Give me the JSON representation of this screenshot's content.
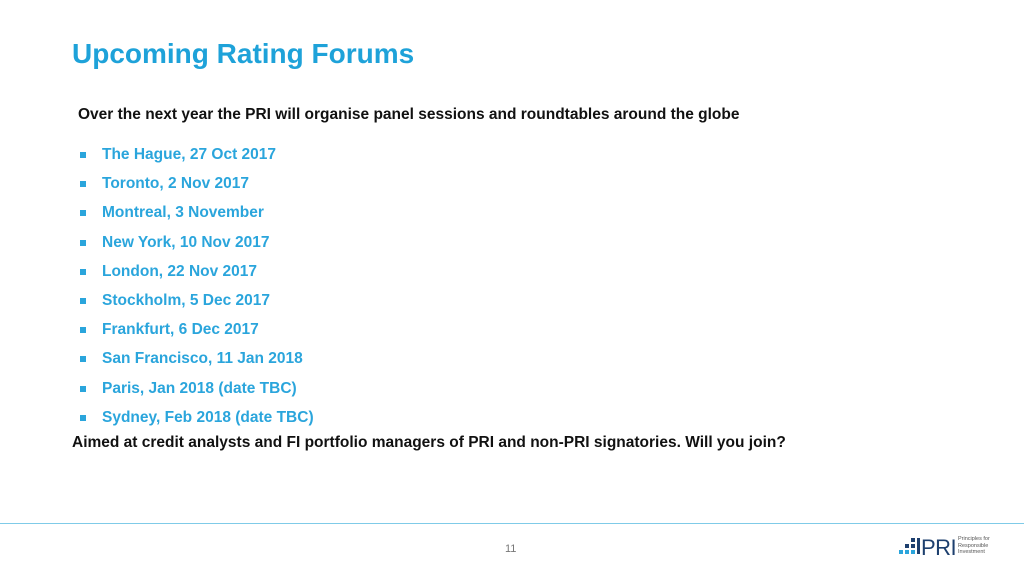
{
  "header": {
    "title": "Upcoming Rating Forums"
  },
  "body": {
    "intro": "Over the next year the PRI will organise panel sessions and roundtables around the globe",
    "events": [
      "The Hague, 27 Oct 2017",
      "Toronto, 2 Nov 2017",
      "Montreal, 3 November",
      "New York, 10 Nov 2017",
      "London, 22 Nov 2017",
      "Stockholm, 5 Dec 2017",
      "Frankfurt, 6 Dec 2017",
      "San Francisco, 11 Jan 2018",
      "Paris, Jan 2018 (date TBC)",
      "Sydney, Feb 2018 (date TBC)"
    ],
    "closing": "Aimed at credit analysts and FI portfolio managers of PRI and non-PRI signatories. Will you join?"
  },
  "footer": {
    "page_number": "11",
    "logo": {
      "name": "PRI",
      "tagline": [
        "Principles for",
        "Responsible",
        "Investment"
      ]
    }
  }
}
